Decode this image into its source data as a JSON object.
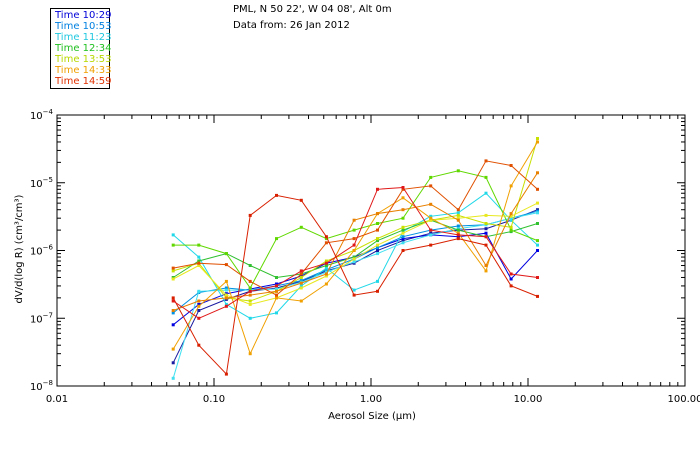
{
  "header": {
    "location": "PML, N 50 22', W 04 08', Alt 0m",
    "date_line": "Data from: 26 Jan 2012"
  },
  "chart_data": {
    "type": "line",
    "title": "PML, N 50 22', W 04 08', Alt 0m",
    "xlabel": "Aerosol Size (μm)",
    "ylabel": "dV/d(log R) (cm³/cm³)",
    "xscale": "log",
    "yscale": "log",
    "xlim": [
      0.01,
      100
    ],
    "ylim": [
      1e-08,
      0.0001
    ],
    "x_tick_values": [
      0.01,
      0.1,
      1,
      10,
      100
    ],
    "x_tick_labels": [
      "0.01",
      "0.10",
      "1.00",
      "10.00",
      "100.00"
    ],
    "y_tick_exponents": [
      -8,
      -7,
      -6,
      -5,
      -4
    ],
    "legend_position": "top-left",
    "x": [
      0.055,
      0.08,
      0.12,
      0.17,
      0.25,
      0.36,
      0.52,
      0.78,
      1.1,
      1.6,
      2.4,
      3.6,
      5.4,
      7.8,
      11.5
    ],
    "series": [
      {
        "name": "Time 10:29",
        "color": "#1a1aa0",
        "values": [
          2.2e-08,
          1.3e-07,
          1.9e-07,
          2.5e-07,
          2.8e-07,
          3.5e-07,
          5e-07,
          6.5e-07,
          1e-06,
          1.4e-06,
          1.8e-06,
          2e-06,
          2.1e-06,
          2.8e-06,
          4e-06
        ]
      },
      {
        "name": "Time 10:29",
        "color": "#0000e0",
        "values": [
          8e-08,
          1.6e-07,
          2.3e-07,
          2.7e-07,
          3.2e-07,
          4.2e-07,
          6.5e-07,
          8e-07,
          1.1e-06,
          1.5e-06,
          1.7e-06,
          1.6e-06,
          1.8e-06,
          3.8e-07,
          1e-06
        ]
      },
      {
        "name": "Time 10:53",
        "color": "#0090e0",
        "values": [
          1.2e-07,
          2.4e-07,
          2.8e-07,
          2.6e-07,
          3e-07,
          3.6e-07,
          5.2e-07,
          7.5e-07,
          1.1e-06,
          1.6e-06,
          2e-06,
          2.3e-06,
          2.4e-06,
          3e-06,
          3.8e-06
        ]
      },
      {
        "name": "Time 11:23",
        "color": "#20d8e8",
        "values": [
          1.7e-06,
          8e-07,
          1.6e-07,
          1e-07,
          1.2e-07,
          3e-07,
          5.5e-07,
          2.6e-07,
          3.5e-07,
          1.9e-06,
          3.2e-06,
          3.6e-06,
          7e-06,
          2.8e-06,
          1.2e-06
        ]
      },
      {
        "name": "Time 11:23",
        "color": "#40e0f0",
        "values": [
          1.3e-08,
          2.5e-07,
          2.6e-07,
          2.6e-07,
          2.7e-07,
          3.4e-07,
          4.8e-07,
          6.8e-07,
          9e-07,
          1.3e-06,
          1.7e-06,
          2.1e-06,
          2.4e-06,
          3e-06,
          3.6e-06
        ]
      },
      {
        "name": "Time 12:34",
        "color": "#30c030",
        "values": [
          4e-07,
          7e-07,
          9e-07,
          6e-07,
          4e-07,
          4.5e-07,
          6e-07,
          8e-07,
          1.4e-06,
          2e-06,
          2.8e-06,
          2e-06,
          1.6e-06,
          1.9e-06,
          2.5e-06
        ]
      },
      {
        "name": "Time 12:34",
        "color": "#60d800",
        "values": [
          1.2e-06,
          1.2e-06,
          9e-07,
          2.8e-07,
          1.5e-06,
          2.2e-06,
          1.5e-06,
          2e-06,
          2.5e-06,
          3e-06,
          1.2e-05,
          1.5e-05,
          1.2e-05,
          2e-06,
          1.4e-06
        ]
      },
      {
        "name": "Time 13:53",
        "color": "#c8e000",
        "values": [
          5e-07,
          6.5e-07,
          2e-07,
          1.8e-07,
          2.5e-07,
          4e-07,
          7e-07,
          1e-06,
          1.5e-06,
          2.2e-06,
          2.8e-06,
          3.3e-06,
          2.5e-06,
          2.2e-06,
          4.5e-05
        ]
      },
      {
        "name": "Time 13:53",
        "color": "#e8e820",
        "values": [
          3.8e-07,
          6e-07,
          2.2e-07,
          1.6e-07,
          2e-07,
          2.8e-07,
          4.2e-07,
          7.5e-07,
          1.2e-06,
          1.8e-06,
          2.8e-06,
          3e-06,
          3.3e-06,
          3.2e-06,
          5e-06
        ]
      },
      {
        "name": "Time 14:33",
        "color": "#f0a000",
        "values": [
          3.5e-08,
          1.5e-07,
          3.5e-07,
          3e-08,
          2e-07,
          1.8e-07,
          3.2e-07,
          1e-06,
          3.5e-06,
          6e-06,
          3e-06,
          1.8e-06,
          5e-07,
          9e-06,
          4e-05
        ]
      },
      {
        "name": "Time 14:33",
        "color": "#e88000",
        "values": [
          1.3e-07,
          1.8e-07,
          2e-07,
          2.2e-07,
          2.5e-07,
          3.3e-07,
          4.5e-07,
          2.8e-06,
          3.5e-06,
          4e-06,
          4.8e-06,
          2.8e-06,
          6e-07,
          3.5e-06,
          1.4e-05
        ]
      },
      {
        "name": "Time 14:59",
        "color": "#e05000",
        "values": [
          5.5e-07,
          6.5e-07,
          6.2e-07,
          3.5e-07,
          2.2e-07,
          4.5e-07,
          1.3e-06,
          1.5e-06,
          2e-06,
          8e-06,
          9e-06,
          4e-06,
          2.1e-05,
          1.8e-05,
          8e-06
        ]
      },
      {
        "name": "Time 14:59",
        "color": "#d82000",
        "values": [
          2e-07,
          4e-08,
          1.5e-08,
          3.3e-06,
          6.5e-06,
          5.5e-06,
          1.6e-06,
          2.2e-07,
          2.5e-07,
          1e-06,
          1.2e-06,
          1.5e-06,
          1.2e-06,
          3e-07,
          2.1e-07
        ]
      },
      {
        "name": "Time 14:59",
        "color": "#e01818",
        "values": [
          1.8e-07,
          1e-07,
          1.5e-07,
          2.5e-07,
          3e-07,
          5e-07,
          6.5e-07,
          1.2e-06,
          8e-06,
          8.5e-06,
          2e-06,
          1.7e-06,
          1.6e-06,
          4.5e-07,
          4e-07
        ]
      }
    ]
  },
  "legend": [
    {
      "label": "Time 10:29",
      "color": "#0000d8"
    },
    {
      "label": "Time 10:53",
      "color": "#0080e0"
    },
    {
      "label": "Time 11:23",
      "color": "#20c8e0"
    },
    {
      "label": "Time 12:34",
      "color": "#20c020"
    },
    {
      "label": "Time 13:53",
      "color": "#b8d800"
    },
    {
      "label": "Time 14:33",
      "color": "#f0a000"
    },
    {
      "label": "Time 14:59",
      "color": "#e03000"
    }
  ]
}
